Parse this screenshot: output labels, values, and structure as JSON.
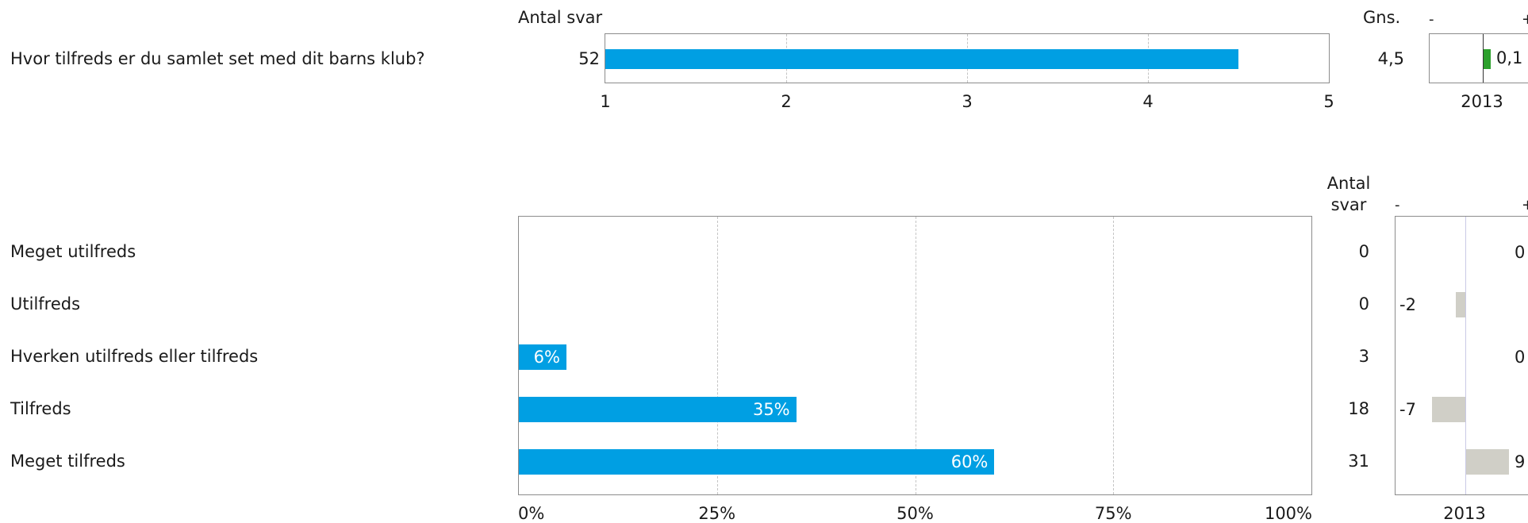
{
  "chart_data": [
    {
      "type": "bar",
      "orientation": "horizontal",
      "question": "Hvor tilfreds er du samlet set med dit barns klub?",
      "count_label": "Antal svar",
      "count": "52",
      "mean_label": "Gns.",
      "mean": "4,5",
      "mean_value": 4.5,
      "xlim": [
        1,
        5
      ],
      "x_ticks": [
        "1",
        "2",
        "3",
        "4",
        "5"
      ],
      "bar_color": "#009fe3"
    },
    {
      "type": "bar",
      "orientation": "horizontal",
      "title": "2013",
      "minus_label": "-",
      "plus_label": "+",
      "value": 0.1,
      "value_label": "0,1",
      "bar_color": "#2ca02c"
    },
    {
      "type": "bar",
      "orientation": "horizontal",
      "count_label": "Antal svar",
      "categories": [
        "Meget utilfreds",
        "Utilfreds",
        "Hverken utilfreds eller tilfreds",
        "Tilfreds",
        "Meget tilfreds"
      ],
      "values": [
        0,
        0,
        6,
        35,
        60
      ],
      "value_labels": [
        "",
        "",
        "6%",
        "35%",
        "60%"
      ],
      "counts": [
        "0",
        "0",
        "3",
        "18",
        "31"
      ],
      "xlim": [
        0,
        100
      ],
      "x_ticks": [
        "0%",
        "25%",
        "50%",
        "75%",
        "100%"
      ],
      "bar_color": "#009fe3"
    },
    {
      "type": "bar",
      "orientation": "horizontal",
      "title": "2013",
      "minus_label": "-",
      "plus_label": "+",
      "categories": [
        "Meget utilfreds",
        "Utilfreds",
        "Hverken utilfreds eller tilfreds",
        "Tilfreds",
        "Meget tilfreds"
      ],
      "values": [
        0,
        -2,
        0,
        -7,
        9
      ],
      "value_labels": [
        "0",
        "-2",
        "0",
        "-7",
        "9"
      ],
      "bar_color": "#d0cfc7"
    }
  ]
}
